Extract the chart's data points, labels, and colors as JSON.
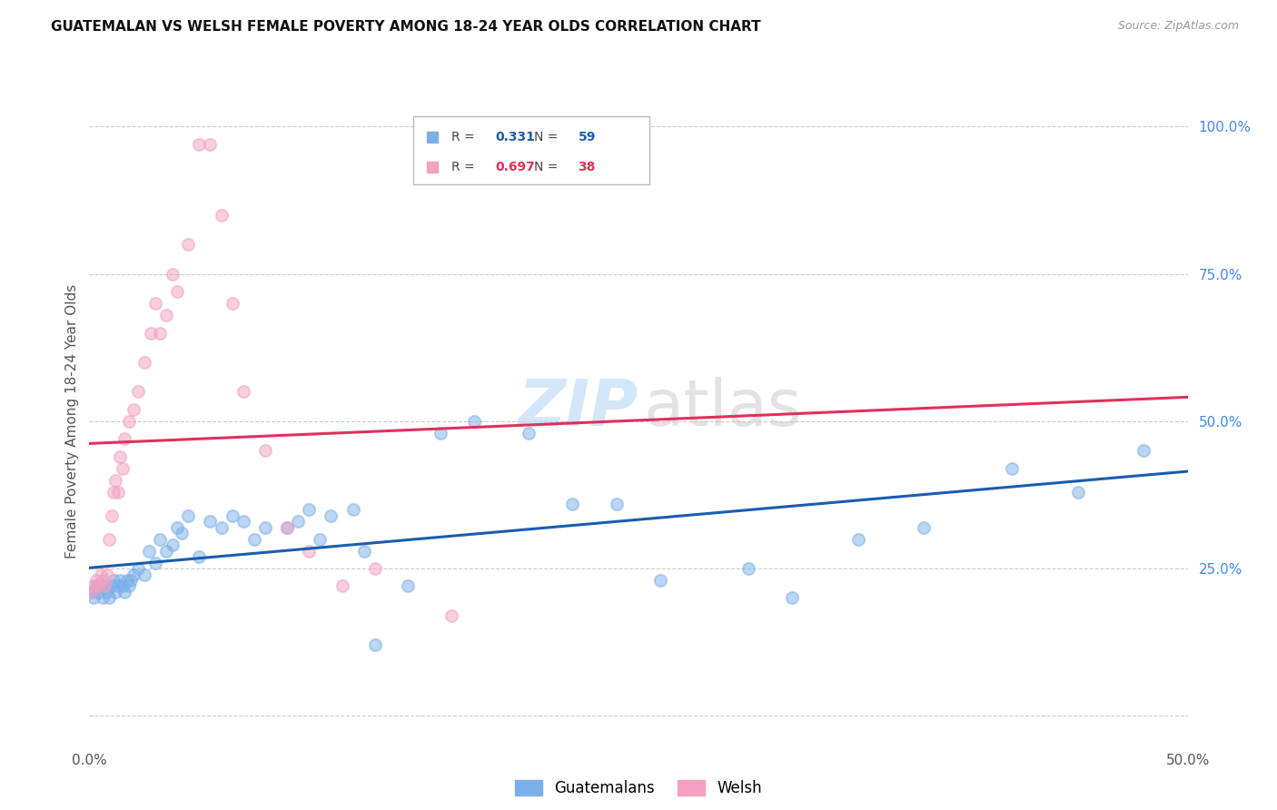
{
  "title": "GUATEMALAN VS WELSH FEMALE POVERTY AMONG 18-24 YEAR OLDS CORRELATION CHART",
  "source": "Source: ZipAtlas.com",
  "ylabel": "Female Poverty Among 18-24 Year Olds",
  "xlim": [
    0.0,
    0.5
  ],
  "ylim": [
    -0.05,
    1.05
  ],
  "xtick_positions": [
    0.0,
    0.05,
    0.1,
    0.15,
    0.2,
    0.25,
    0.3,
    0.35,
    0.4,
    0.45,
    0.5
  ],
  "xtick_labels": [
    "0.0%",
    "",
    "",
    "",
    "",
    "",
    "",
    "",
    "",
    "",
    "50.0%"
  ],
  "ytick_positions": [
    0.0,
    0.25,
    0.5,
    0.75,
    1.0
  ],
  "ytick_labels": [
    "",
    "25.0%",
    "50.0%",
    "75.0%",
    "100.0%"
  ],
  "guatemalan_color": "#7ab0e8",
  "welsh_color": "#f4a0c0",
  "guatemalan_line_color": "#1a5cb0",
  "welsh_line_color": "#e0305a",
  "legend_R_guatemalan": "0.331",
  "legend_N_guatemalan": "59",
  "legend_R_welsh": "0.697",
  "legend_N_welsh": "38",
  "guatemalan_x": [
    0.001,
    0.002,
    0.003,
    0.004,
    0.005,
    0.006,
    0.007,
    0.008,
    0.009,
    0.01,
    0.011,
    0.012,
    0.013,
    0.014,
    0.015,
    0.016,
    0.017,
    0.018,
    0.019,
    0.02,
    0.022,
    0.025,
    0.027,
    0.03,
    0.032,
    0.035,
    0.038,
    0.04,
    0.042,
    0.045,
    0.05,
    0.055,
    0.06,
    0.065,
    0.07,
    0.075,
    0.08,
    0.09,
    0.095,
    0.1,
    0.105,
    0.11,
    0.12,
    0.125,
    0.13,
    0.145,
    0.16,
    0.175,
    0.2,
    0.22,
    0.24,
    0.26,
    0.3,
    0.32,
    0.35,
    0.38,
    0.42,
    0.45,
    0.48
  ],
  "guatemalan_y": [
    0.21,
    0.2,
    0.22,
    0.21,
    0.22,
    0.2,
    0.22,
    0.21,
    0.2,
    0.22,
    0.23,
    0.21,
    0.22,
    0.23,
    0.22,
    0.21,
    0.23,
    0.22,
    0.23,
    0.24,
    0.25,
    0.24,
    0.28,
    0.26,
    0.3,
    0.28,
    0.29,
    0.32,
    0.31,
    0.34,
    0.27,
    0.33,
    0.32,
    0.34,
    0.33,
    0.3,
    0.32,
    0.32,
    0.33,
    0.35,
    0.3,
    0.34,
    0.35,
    0.28,
    0.12,
    0.22,
    0.48,
    0.5,
    0.48,
    0.36,
    0.36,
    0.23,
    0.25,
    0.2,
    0.3,
    0.32,
    0.42,
    0.38,
    0.45
  ],
  "welsh_x": [
    0.001,
    0.002,
    0.003,
    0.004,
    0.005,
    0.006,
    0.007,
    0.008,
    0.009,
    0.01,
    0.011,
    0.012,
    0.013,
    0.014,
    0.015,
    0.016,
    0.018,
    0.02,
    0.022,
    0.025,
    0.028,
    0.03,
    0.032,
    0.035,
    0.038,
    0.04,
    0.045,
    0.05,
    0.055,
    0.06,
    0.065,
    0.07,
    0.08,
    0.09,
    0.1,
    0.115,
    0.13,
    0.165
  ],
  "welsh_y": [
    0.21,
    0.22,
    0.23,
    0.22,
    0.24,
    0.23,
    0.22,
    0.24,
    0.3,
    0.34,
    0.38,
    0.4,
    0.38,
    0.44,
    0.42,
    0.47,
    0.5,
    0.52,
    0.55,
    0.6,
    0.65,
    0.7,
    0.65,
    0.68,
    0.75,
    0.72,
    0.8,
    0.97,
    0.97,
    0.85,
    0.7,
    0.55,
    0.45,
    0.32,
    0.28,
    0.22,
    0.25,
    0.17
  ]
}
